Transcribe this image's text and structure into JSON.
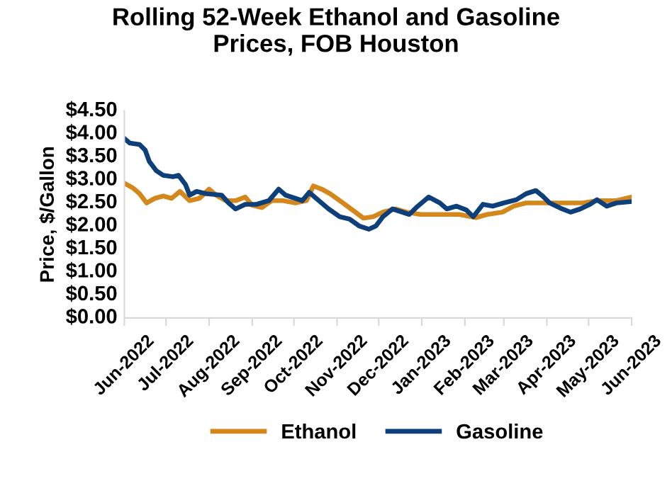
{
  "chart_data": {
    "type": "line",
    "title": "Rolling 52-Week Ethanol and Gasoline\nPrices, FOB Houston",
    "ylabel": "Price, $/Gallon",
    "xlim": [
      "2022-06-01",
      "2023-06-01"
    ],
    "xticks": [
      {
        "value": "2022-06-01",
        "label": "Jun-2022"
      },
      {
        "value": "2022-07-01",
        "label": "Jul-2022"
      },
      {
        "value": "2022-08-01",
        "label": "Aug-2022"
      },
      {
        "value": "2022-09-01",
        "label": "Sep-2022"
      },
      {
        "value": "2022-10-01",
        "label": "Oct-2022"
      },
      {
        "value": "2022-11-01",
        "label": "Nov-2022"
      },
      {
        "value": "2022-12-01",
        "label": "Dec-2022"
      },
      {
        "value": "2023-01-01",
        "label": "Jan-2023"
      },
      {
        "value": "2023-02-01",
        "label": "Feb-2023"
      },
      {
        "value": "2023-03-01",
        "label": "Mar-2023"
      },
      {
        "value": "2023-04-01",
        "label": "Apr-2023"
      },
      {
        "value": "2023-05-01",
        "label": "May-2023"
      },
      {
        "value": "2023-06-01",
        "label": "Jun-2023"
      }
    ],
    "ylim": [
      0,
      4.5
    ],
    "yticks": [
      {
        "value": 0,
        "label": "$0.00"
      },
      {
        "value": 0.5,
        "label": "$0.50"
      },
      {
        "value": 1.0,
        "label": "$1.00"
      },
      {
        "value": 1.5,
        "label": "$1.50"
      },
      {
        "value": 2.0,
        "label": "$2.00"
      },
      {
        "value": 2.5,
        "label": "$2.50"
      },
      {
        "value": 3.0,
        "label": "$3.00"
      },
      {
        "value": 3.5,
        "label": "$3.50"
      },
      {
        "value": 4.0,
        "label": "$4.00"
      },
      {
        "value": 4.5,
        "label": "$4.50"
      }
    ],
    "grid": false,
    "legend": "bottom",
    "marker": "none",
    "line_style": "solid",
    "series": [
      {
        "name": "Ethanol",
        "color": "#d4881c",
        "x": [
          "2022-06-01",
          "2022-06-07",
          "2022-06-12",
          "2022-06-17",
          "2022-06-23",
          "2022-06-29",
          "2022-07-05",
          "2022-07-11",
          "2022-07-18",
          "2022-07-25",
          "2022-08-01",
          "2022-08-06",
          "2022-08-13",
          "2022-08-20",
          "2022-08-27",
          "2022-09-01",
          "2022-09-08",
          "2022-09-15",
          "2022-09-23",
          "2022-10-02",
          "2022-10-10",
          "2022-10-15",
          "2022-10-21",
          "2022-10-27",
          "2022-11-03",
          "2022-11-12",
          "2022-11-20",
          "2022-11-27",
          "2022-12-04",
          "2022-12-13",
          "2022-12-21",
          "2022-12-31",
          "2023-01-14",
          "2023-01-28",
          "2023-02-09",
          "2023-02-17",
          "2023-02-28",
          "2023-03-08",
          "2023-03-17",
          "2023-03-31",
          "2023-04-13",
          "2023-04-27",
          "2023-05-07",
          "2023-05-21",
          "2023-06-01"
        ],
        "values": [
          2.93,
          2.83,
          2.7,
          2.5,
          2.6,
          2.65,
          2.6,
          2.75,
          2.55,
          2.6,
          2.8,
          2.67,
          2.55,
          2.55,
          2.63,
          2.45,
          2.4,
          2.55,
          2.55,
          2.5,
          2.55,
          2.87,
          2.8,
          2.7,
          2.55,
          2.35,
          2.17,
          2.2,
          2.3,
          2.37,
          2.3,
          2.25,
          2.25,
          2.25,
          2.18,
          2.25,
          2.3,
          2.43,
          2.5,
          2.5,
          2.5,
          2.5,
          2.55,
          2.55,
          2.63
        ]
      },
      {
        "name": "Gasoline",
        "color": "#0d3f7a",
        "x": [
          "2022-06-01",
          "2022-06-05",
          "2022-06-12",
          "2022-06-16",
          "2022-06-19",
          "2022-06-24",
          "2022-06-29",
          "2022-07-06",
          "2022-07-10",
          "2022-07-15",
          "2022-07-18",
          "2022-07-23",
          "2022-07-30",
          "2022-08-10",
          "2022-08-15",
          "2022-08-20",
          "2022-08-27",
          "2022-09-04",
          "2022-09-13",
          "2022-09-20",
          "2022-09-25",
          "2022-10-02",
          "2022-10-07",
          "2022-10-12",
          "2022-10-17",
          "2022-10-26",
          "2022-11-03",
          "2022-11-10",
          "2022-11-17",
          "2022-11-24",
          "2022-11-29",
          "2022-12-04",
          "2022-12-11",
          "2022-12-18",
          "2022-12-23",
          "2022-12-28",
          "2023-01-06",
          "2023-01-14",
          "2023-01-19",
          "2023-01-26",
          "2023-02-02",
          "2023-02-07",
          "2023-02-14",
          "2023-02-21",
          "2023-03-01",
          "2023-03-10",
          "2023-03-17",
          "2023-03-24",
          "2023-03-29",
          "2023-04-03",
          "2023-04-12",
          "2023-04-18",
          "2023-04-25",
          "2023-05-02",
          "2023-05-07",
          "2023-05-14",
          "2023-05-21",
          "2023-06-01"
        ],
        "values": [
          3.9,
          3.8,
          3.77,
          3.65,
          3.4,
          3.2,
          3.1,
          3.07,
          3.1,
          2.9,
          2.67,
          2.75,
          2.7,
          2.67,
          2.5,
          2.37,
          2.47,
          2.47,
          2.55,
          2.8,
          2.67,
          2.6,
          2.55,
          2.73,
          2.6,
          2.37,
          2.2,
          2.15,
          2.0,
          1.93,
          2.0,
          2.2,
          2.37,
          2.3,
          2.25,
          2.4,
          2.63,
          2.5,
          2.37,
          2.43,
          2.35,
          2.2,
          2.47,
          2.43,
          2.5,
          2.57,
          2.7,
          2.77,
          2.65,
          2.5,
          2.37,
          2.3,
          2.37,
          2.47,
          2.57,
          2.43,
          2.5,
          2.53
        ]
      }
    ]
  }
}
